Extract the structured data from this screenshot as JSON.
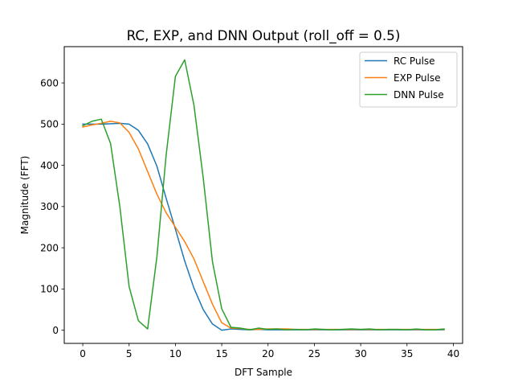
{
  "chart_data": {
    "type": "line",
    "title": "RC, EXP, and DNN Output (roll_off = 0.5)",
    "xlabel": "DFT Sample",
    "ylabel": "Magnitude (FFT)",
    "xlim": [
      -2,
      41
    ],
    "ylim": [
      -32,
      688
    ],
    "xticks": [
      0,
      5,
      10,
      15,
      20,
      25,
      30,
      35,
      40
    ],
    "yticks": [
      0,
      100,
      200,
      300,
      400,
      500,
      600
    ],
    "legend_position": "top-right",
    "grid": false,
    "x": [
      0,
      1,
      2,
      3,
      4,
      5,
      6,
      7,
      8,
      9,
      10,
      11,
      12,
      13,
      14,
      15,
      16,
      17,
      18,
      19,
      20,
      21,
      22,
      23,
      24,
      25,
      26,
      27,
      28,
      29,
      30,
      31,
      32,
      33,
      34,
      35,
      36,
      37,
      38,
      39
    ],
    "series": [
      {
        "name": "RC Pulse",
        "color": "#1f77b4",
        "values": [
          500,
          500,
          500,
          501,
          502,
          500,
          485,
          452,
          398,
          320,
          245,
          168,
          102,
          50,
          15,
          0,
          3,
          2,
          1,
          2,
          1,
          1,
          1,
          1,
          1,
          1,
          1,
          1,
          1,
          1,
          1,
          1,
          1,
          1,
          1,
          1,
          1,
          1,
          1,
          1
        ]
      },
      {
        "name": "EXP Pulse",
        "color": "#ff7f0e",
        "values": [
          493,
          498,
          502,
          507,
          503,
          480,
          440,
          385,
          330,
          285,
          250,
          215,
          173,
          118,
          63,
          18,
          5,
          4,
          2,
          2,
          3,
          3,
          3,
          2,
          2,
          2,
          2,
          2,
          2,
          2,
          2,
          2,
          2,
          2,
          2,
          2,
          2,
          2,
          2,
          2
        ]
      },
      {
        "name": "DNN Pulse",
        "color": "#2ca02c",
        "values": [
          496,
          507,
          512,
          453,
          300,
          106,
          23,
          3,
          178,
          425,
          616,
          656,
          546,
          370,
          166,
          52,
          7,
          5,
          1,
          5,
          2,
          3,
          1,
          2,
          1,
          3,
          2,
          1,
          2,
          3,
          2,
          3,
          1,
          2,
          2,
          1,
          3,
          1,
          1,
          3
        ]
      }
    ]
  }
}
